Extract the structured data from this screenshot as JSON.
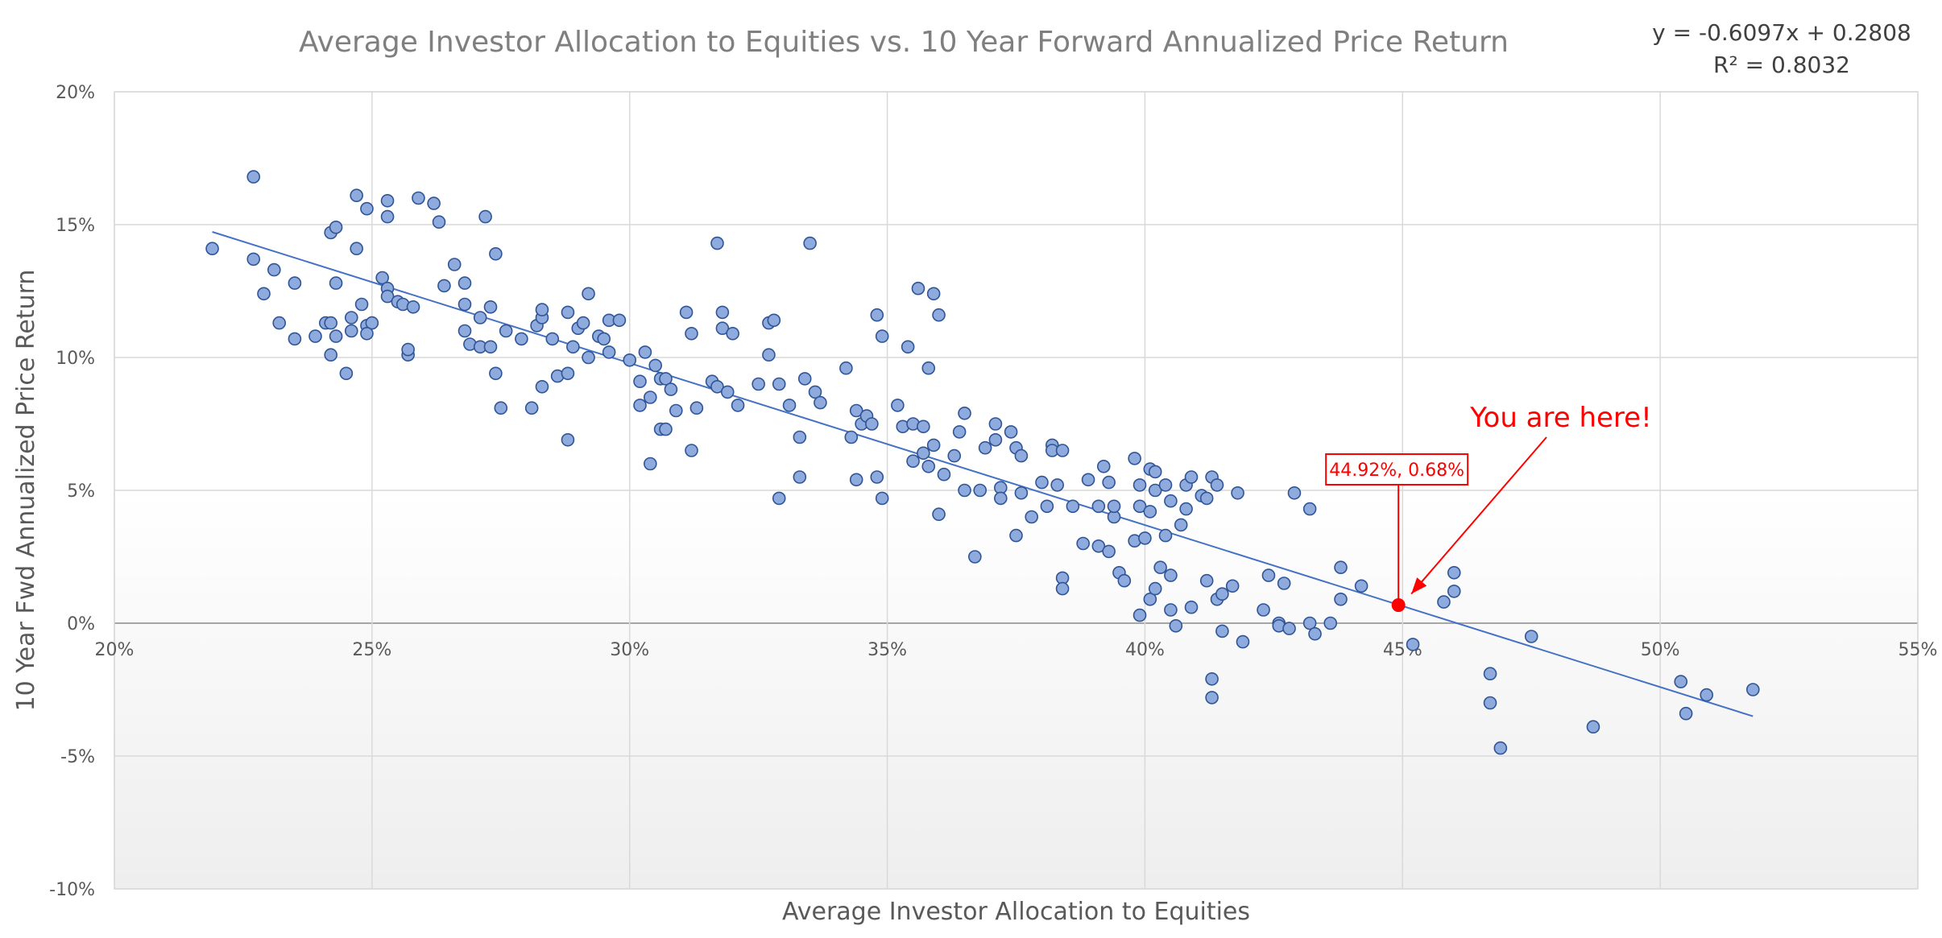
{
  "chart_data": {
    "type": "scatter",
    "title": "Average Investor Allocation to Equities vs. 10 Year Forward Annualized Price Return",
    "xlabel": "Average Investor Allocation to Equities",
    "ylabel": "10 Year Fwd Annualized Price Return",
    "xlim": [
      0.2,
      0.55
    ],
    "ylim": [
      -0.1,
      0.2
    ],
    "x_ticks": [
      0.2,
      0.25,
      0.3,
      0.35,
      0.4,
      0.45,
      0.5,
      0.55
    ],
    "x_tick_labels": [
      "20%",
      "25%",
      "30%",
      "35%",
      "40%",
      "45%",
      "50%",
      "55%"
    ],
    "y_ticks": [
      -0.1,
      -0.05,
      0.0,
      0.05,
      0.1,
      0.15,
      0.2
    ],
    "y_tick_labels": [
      "-10%",
      "-5%",
      "0%",
      "5%",
      "10%",
      "15%",
      "20%"
    ],
    "grid": true,
    "colors": {
      "point_fill": "#8faadc",
      "point_stroke": "#2f5597",
      "trendline": "#4472c4",
      "highlight": "#ff0000",
      "grid": "#d9d9d9",
      "zero_line": "#a6a6a6"
    },
    "trendline": {
      "slope": -0.6097,
      "intercept": 0.2808,
      "x_range": [
        0.219,
        0.518
      ],
      "equation_label": "y = -0.6097x + 0.2808",
      "r2_label": "R² = 0.8032"
    },
    "highlight_point": {
      "x": 0.4492,
      "y": 0.0068,
      "label": "44.92%, 0.68%",
      "note": "You are here!"
    },
    "points": [
      [
        0.219,
        0.141
      ],
      [
        0.227,
        0.168
      ],
      [
        0.227,
        0.137
      ],
      [
        0.229,
        0.124
      ],
      [
        0.231,
        0.133
      ],
      [
        0.232,
        0.113
      ],
      [
        0.235,
        0.128
      ],
      [
        0.235,
        0.107
      ],
      [
        0.239,
        0.108
      ],
      [
        0.241,
        0.113
      ],
      [
        0.242,
        0.147
      ],
      [
        0.243,
        0.149
      ],
      [
        0.243,
        0.128
      ],
      [
        0.242,
        0.113
      ],
      [
        0.243,
        0.108
      ],
      [
        0.242,
        0.101
      ],
      [
        0.245,
        0.094
      ],
      [
        0.246,
        0.115
      ],
      [
        0.246,
        0.11
      ],
      [
        0.247,
        0.141
      ],
      [
        0.248,
        0.12
      ],
      [
        0.247,
        0.161
      ],
      [
        0.249,
        0.156
      ],
      [
        0.249,
        0.112
      ],
      [
        0.25,
        0.113
      ],
      [
        0.249,
        0.109
      ],
      [
        0.252,
        0.13
      ],
      [
        0.253,
        0.126
      ],
      [
        0.253,
        0.123
      ],
      [
        0.253,
        0.159
      ],
      [
        0.253,
        0.153
      ],
      [
        0.255,
        0.121
      ],
      [
        0.256,
        0.12
      ],
      [
        0.257,
        0.101
      ],
      [
        0.257,
        0.103
      ],
      [
        0.258,
        0.119
      ],
      [
        0.259,
        0.16
      ],
      [
        0.262,
        0.158
      ],
      [
        0.263,
        0.151
      ],
      [
        0.264,
        0.127
      ],
      [
        0.266,
        0.135
      ],
      [
        0.268,
        0.128
      ],
      [
        0.268,
        0.12
      ],
      [
        0.268,
        0.11
      ],
      [
        0.269,
        0.105
      ],
      [
        0.271,
        0.115
      ],
      [
        0.271,
        0.104
      ],
      [
        0.272,
        0.153
      ],
      [
        0.273,
        0.119
      ],
      [
        0.273,
        0.104
      ],
      [
        0.274,
        0.094
      ],
      [
        0.274,
        0.139
      ],
      [
        0.275,
        0.081
      ],
      [
        0.276,
        0.11
      ],
      [
        0.279,
        0.107
      ],
      [
        0.281,
        0.081
      ],
      [
        0.282,
        0.112
      ],
      [
        0.283,
        0.115
      ],
      [
        0.283,
        0.118
      ],
      [
        0.283,
        0.089
      ],
      [
        0.285,
        0.107
      ],
      [
        0.286,
        0.093
      ],
      [
        0.288,
        0.117
      ],
      [
        0.288,
        0.094
      ],
      [
        0.288,
        0.069
      ],
      [
        0.289,
        0.104
      ],
      [
        0.29,
        0.111
      ],
      [
        0.291,
        0.113
      ],
      [
        0.292,
        0.1
      ],
      [
        0.292,
        0.124
      ],
      [
        0.294,
        0.108
      ],
      [
        0.295,
        0.107
      ],
      [
        0.296,
        0.102
      ],
      [
        0.296,
        0.114
      ],
      [
        0.298,
        0.114
      ],
      [
        0.3,
        0.099
      ],
      [
        0.302,
        0.091
      ],
      [
        0.302,
        0.082
      ],
      [
        0.303,
        0.102
      ],
      [
        0.304,
        0.085
      ],
      [
        0.304,
        0.06
      ],
      [
        0.305,
        0.097
      ],
      [
        0.306,
        0.092
      ],
      [
        0.307,
        0.092
      ],
      [
        0.306,
        0.073
      ],
      [
        0.307,
        0.073
      ],
      [
        0.308,
        0.088
      ],
      [
        0.309,
        0.08
      ],
      [
        0.311,
        0.117
      ],
      [
        0.312,
        0.109
      ],
      [
        0.312,
        0.065
      ],
      [
        0.313,
        0.081
      ],
      [
        0.317,
        0.143
      ],
      [
        0.316,
        0.091
      ],
      [
        0.317,
        0.089
      ],
      [
        0.318,
        0.117
      ],
      [
        0.318,
        0.111
      ],
      [
        0.319,
        0.087
      ],
      [
        0.32,
        0.109
      ],
      [
        0.321,
        0.082
      ],
      [
        0.325,
        0.09
      ],
      [
        0.327,
        0.101
      ],
      [
        0.327,
        0.113
      ],
      [
        0.328,
        0.114
      ],
      [
        0.329,
        0.09
      ],
      [
        0.329,
        0.047
      ],
      [
        0.331,
        0.082
      ],
      [
        0.333,
        0.07
      ],
      [
        0.333,
        0.055
      ],
      [
        0.334,
        0.092
      ],
      [
        0.335,
        0.143
      ],
      [
        0.336,
        0.087
      ],
      [
        0.337,
        0.083
      ],
      [
        0.342,
        0.096
      ],
      [
        0.343,
        0.07
      ],
      [
        0.344,
        0.08
      ],
      [
        0.344,
        0.054
      ],
      [
        0.345,
        0.075
      ],
      [
        0.346,
        0.078
      ],
      [
        0.347,
        0.075
      ],
      [
        0.348,
        0.055
      ],
      [
        0.348,
        0.116
      ],
      [
        0.349,
        0.108
      ],
      [
        0.349,
        0.047
      ],
      [
        0.352,
        0.082
      ],
      [
        0.353,
        0.074
      ],
      [
        0.354,
        0.104
      ],
      [
        0.355,
        0.075
      ],
      [
        0.355,
        0.061
      ],
      [
        0.356,
        0.126
      ],
      [
        0.357,
        0.074
      ],
      [
        0.357,
        0.064
      ],
      [
        0.358,
        0.096
      ],
      [
        0.358,
        0.059
      ],
      [
        0.359,
        0.067
      ],
      [
        0.359,
        0.124
      ],
      [
        0.36,
        0.116
      ],
      [
        0.36,
        0.041
      ],
      [
        0.361,
        0.056
      ],
      [
        0.363,
        0.063
      ],
      [
        0.364,
        0.072
      ],
      [
        0.365,
        0.079
      ],
      [
        0.365,
        0.05
      ],
      [
        0.367,
        0.025
      ],
      [
        0.368,
        0.05
      ],
      [
        0.369,
        0.066
      ],
      [
        0.371,
        0.075
      ],
      [
        0.371,
        0.069
      ],
      [
        0.372,
        0.051
      ],
      [
        0.372,
        0.047
      ],
      [
        0.374,
        0.072
      ],
      [
        0.375,
        0.066
      ],
      [
        0.375,
        0.033
      ],
      [
        0.376,
        0.063
      ],
      [
        0.376,
        0.049
      ],
      [
        0.378,
        0.04
      ],
      [
        0.38,
        0.053
      ],
      [
        0.381,
        0.044
      ],
      [
        0.382,
        0.067
      ],
      [
        0.382,
        0.065
      ],
      [
        0.384,
        0.065
      ],
      [
        0.383,
        0.052
      ],
      [
        0.384,
        0.017
      ],
      [
        0.384,
        0.013
      ],
      [
        0.386,
        0.044
      ],
      [
        0.388,
        0.03
      ],
      [
        0.389,
        0.054
      ],
      [
        0.391,
        0.029
      ],
      [
        0.391,
        0.044
      ],
      [
        0.392,
        0.059
      ],
      [
        0.393,
        0.053
      ],
      [
        0.393,
        0.027
      ],
      [
        0.394,
        0.04
      ],
      [
        0.394,
        0.044
      ],
      [
        0.395,
        0.019
      ],
      [
        0.396,
        0.016
      ],
      [
        0.398,
        0.031
      ],
      [
        0.398,
        0.062
      ],
      [
        0.399,
        0.052
      ],
      [
        0.399,
        0.044
      ],
      [
        0.399,
        0.003
      ],
      [
        0.4,
        0.032
      ],
      [
        0.401,
        0.058
      ],
      [
        0.401,
        0.042
      ],
      [
        0.402,
        0.057
      ],
      [
        0.402,
        0.05
      ],
      [
        0.401,
        0.009
      ],
      [
        0.402,
        0.013
      ],
      [
        0.403,
        0.021
      ],
      [
        0.404,
        0.033
      ],
      [
        0.404,
        0.052
      ],
      [
        0.405,
        0.046
      ],
      [
        0.405,
        0.018
      ],
      [
        0.405,
        0.005
      ],
      [
        0.406,
        -0.001
      ],
      [
        0.407,
        0.037
      ],
      [
        0.408,
        0.052
      ],
      [
        0.408,
        0.043
      ],
      [
        0.409,
        0.055
      ],
      [
        0.409,
        0.006
      ],
      [
        0.411,
        0.048
      ],
      [
        0.412,
        0.047
      ],
      [
        0.412,
        0.016
      ],
      [
        0.413,
        0.055
      ],
      [
        0.413,
        -0.021
      ],
      [
        0.413,
        -0.028
      ],
      [
        0.414,
        0.052
      ],
      [
        0.414,
        0.009
      ],
      [
        0.415,
        -0.003
      ],
      [
        0.415,
        0.011
      ],
      [
        0.417,
        0.014
      ],
      [
        0.418,
        0.049
      ],
      [
        0.419,
        -0.007
      ],
      [
        0.423,
        0.005
      ],
      [
        0.424,
        0.018
      ],
      [
        0.426,
        0.0
      ],
      [
        0.426,
        -0.001
      ],
      [
        0.427,
        0.015
      ],
      [
        0.428,
        -0.002
      ],
      [
        0.429,
        0.049
      ],
      [
        0.432,
        0.043
      ],
      [
        0.432,
        0.0
      ],
      [
        0.433,
        -0.004
      ],
      [
        0.436,
        0.0
      ],
      [
        0.438,
        0.021
      ],
      [
        0.438,
        0.009
      ],
      [
        0.442,
        0.014
      ],
      [
        0.452,
        -0.008
      ],
      [
        0.458,
        0.008
      ],
      [
        0.46,
        0.019
      ],
      [
        0.46,
        0.012
      ],
      [
        0.467,
        -0.019
      ],
      [
        0.467,
        -0.03
      ],
      [
        0.469,
        -0.047
      ],
      [
        0.475,
        -0.005
      ],
      [
        0.487,
        -0.039
      ],
      [
        0.504,
        -0.022
      ],
      [
        0.505,
        -0.034
      ],
      [
        0.509,
        -0.027
      ],
      [
        0.518,
        -0.025
      ]
    ]
  }
}
